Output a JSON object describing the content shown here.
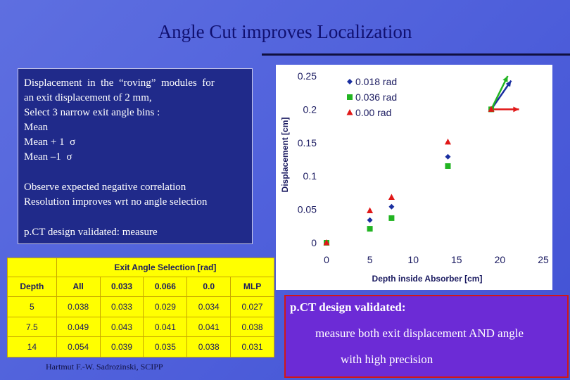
{
  "slide": {
    "title": "Angle Cut improves Localization",
    "footer": "Hartmut F.-W. Sadrozinski, SCIPP"
  },
  "textbox": {
    "lines": [
      "Displacement  in  the  “roving”  modules  for",
      "an exit displacement of 2 mm,",
      "Select 3 narrow exit angle bins :",
      "Mean",
      "Mean + 1  σ",
      "Mean –1  σ"
    ],
    "lines2": [
      "Observe expected negative correlation",
      "Resolution improves wrt no angle selection"
    ],
    "lines3": [
      "p.CT design validated: measure"
    ]
  },
  "callout": {
    "line1": "p.CT design validated:",
    "line2": "measure both exit displacement AND angle",
    "line3": "with high precision"
  },
  "table": {
    "header_group": "Exit Angle Selection [rad]",
    "col_label": "Depth",
    "columns": [
      "All",
      "0.033",
      "0.066",
      "0.0",
      "MLP"
    ],
    "rows": [
      {
        "depth": "5",
        "cells": [
          "0.038",
          "0.033",
          "0.029",
          "0.034",
          "0.027"
        ]
      },
      {
        "depth": "7.5",
        "cells": [
          "0.049",
          "0.043",
          "0.041",
          "0.041",
          "0.038"
        ]
      },
      {
        "depth": "14",
        "cells": [
          "0.054",
          "0.039",
          "0.035",
          "0.038",
          "0.031"
        ]
      }
    ]
  },
  "chart_data": {
    "type": "scatter",
    "xlabel": "Depth inside Absorber  [cm]",
    "ylabel": "Displacement [cm]",
    "xlim": [
      0,
      25
    ],
    "ylim": [
      0,
      0.25
    ],
    "xticks": [
      "0",
      "5",
      "10",
      "15",
      "20",
      "25"
    ],
    "yticks": [
      "0",
      "0.05",
      "0.1",
      "0.15",
      "0.2",
      "0.25"
    ],
    "legend_position": "top-left",
    "series": [
      {
        "name": "0.018 rad",
        "marker": "diamond",
        "color": "#1a2fa0",
        "x": [
          0,
          5,
          7.5,
          14,
          19
        ],
        "y": [
          0.0,
          0.034,
          0.054,
          0.129,
          0.2
        ]
      },
      {
        "name": "0.036 rad",
        "marker": "square",
        "color": "#22b422",
        "x": [
          0,
          5,
          7.5,
          14,
          19
        ],
        "y": [
          0.0,
          0.021,
          0.037,
          0.115,
          0.2
        ]
      },
      {
        "name": "0.00 rad",
        "marker": "triangle",
        "color": "#e01818",
        "x": [
          0,
          5,
          7.5,
          14,
          19
        ],
        "y": [
          0.0,
          0.048,
          0.068,
          0.151,
          0.2
        ]
      }
    ],
    "arrows": [
      {
        "color": "#1a2fa0",
        "from": [
          19,
          0.2
        ],
        "to": [
          21.3,
          0.243
        ]
      },
      {
        "color": "#22b422",
        "from": [
          19,
          0.2
        ],
        "to": [
          20.9,
          0.25
        ]
      },
      {
        "color": "#e01818",
        "from": [
          19,
          0.2
        ],
        "to": [
          22.2,
          0.2
        ]
      }
    ]
  }
}
